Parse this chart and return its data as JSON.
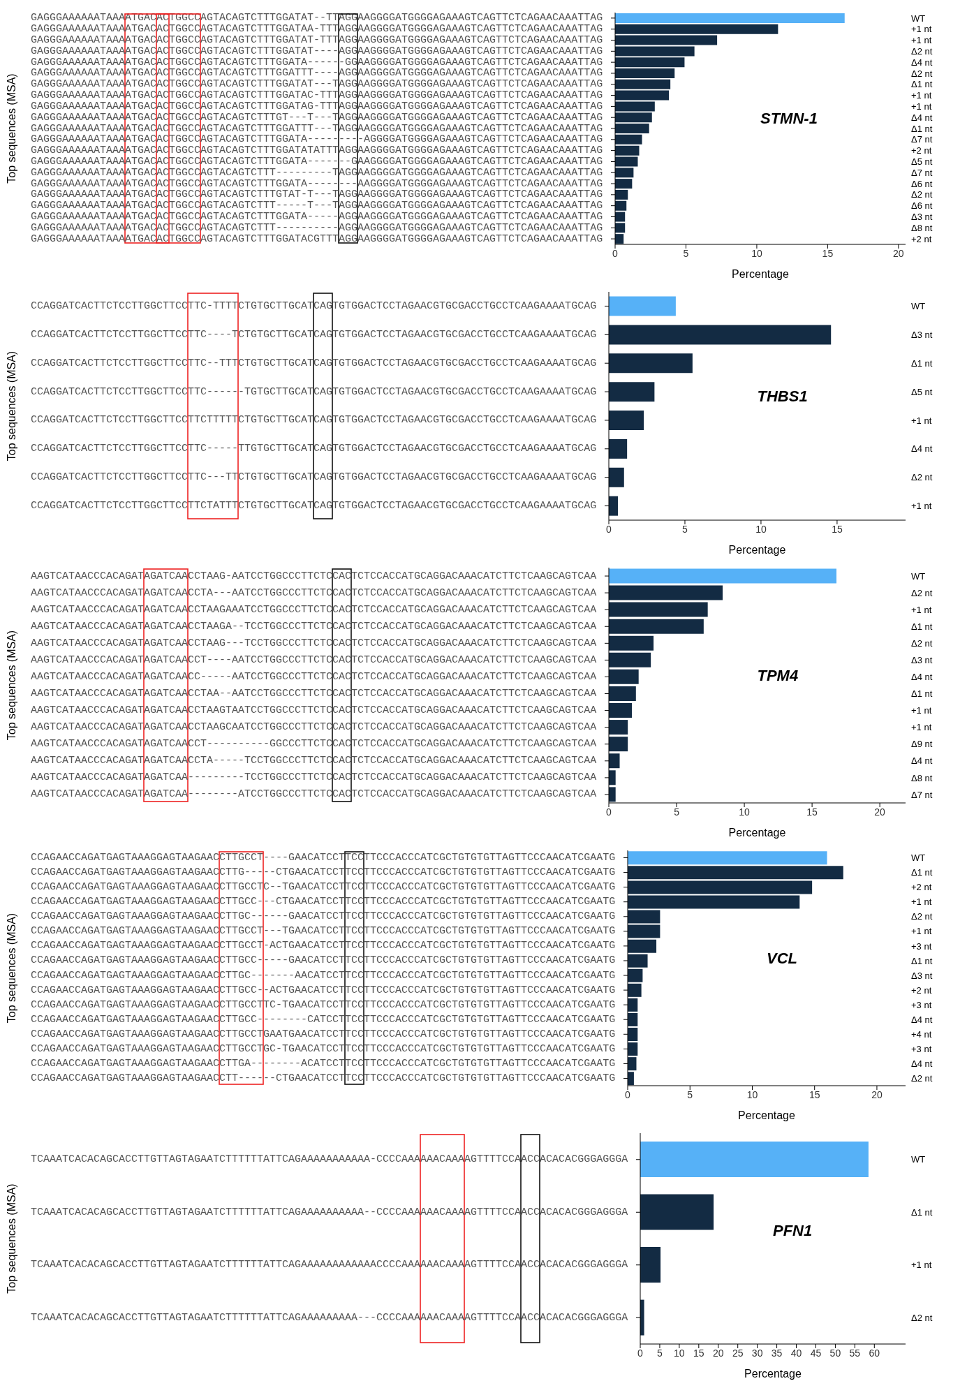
{
  "chart_data": [
    {
      "type": "bar",
      "orientation": "horizontal",
      "xlabel": "Percentage",
      "ylabel": "Top sequences (MSA)",
      "annotations": [
        "STMN-1"
      ],
      "categories": [
        "GAGGGAAAAAATAAAATGACACTGGCCAGTACAGTCTTTGGATAT--TTAGGAAGGGGATGGGGAGAAAGTCAGTTCTCAGAACAAATTAG",
        "GAGGGAAAAAATAAAATGACACTGGCCAGTACAGTCTTTGGATAA-TTTAGGAAGGGGATGGGGAGAAAGTCAGTTCTCAGAACAAATTAG",
        "GAGGGAAAAAATAAAATGACACTGGCCAGTACAGTCTTTGGATAT-TTTAGGAAGGGGATGGGGAGAAAGTCAGTTCTCAGAACAAATTAG",
        "GAGGGAAAAAATAAAATGACACTGGCCAGTACAGTCTTTGGATAT----AGGAAGGGGATGGGGAGAAAGTCAGTTCTCAGAACAAATTAG",
        "GAGGGAAAAAATAAAATGACACTGGCCAGTACAGTCTTTGGATA------GGAAGGGGATGGGGAGAAAGTCAGTTCTCAGAACAAATTAG",
        "GAGGGAAAAAATAAAATGACACTGGCCAGTACAGTCTTTGGATTT----AGGAAGGGGATGGGGAGAAAGTCAGTTCTCAGAACAAATTAG",
        "GAGGGAAAAAATAAAATGACACTGGCCAGTACAGTCTTTGGATAT---TAGGAAGGGGATGGGGAGAAAGTCAGTTCTCAGAACAAATTAG",
        "GAGGGAAAAAATAAAATGACACTGGCCAGTACAGTCTTTGGATAC-TTTAGGAAGGGGATGGGGAGAAAGTCAGTTCTCAGAACAAATTAG",
        "GAGGGAAAAAATAAAATGACACTGGCCAGTACAGTCTTTGGATAG-TTTAGGAAGGGGATGGGGAGAAAGTCAGTTCTCAGAACAAATTAG",
        "GAGGGAAAAAATAAAATGACACTGGCCAGTACAGTCTTTGT---T---TAGGAAGGGGATGGGGAGAAAGTCAGTTCTCAGAACAAATTAG",
        "GAGGGAAAAAATAAAATGACACTGGCCAGTACAGTCTTTGGATTT---TAGGAAGGGGATGGGGAGAAAGTCAGTTCTCAGAACAAATTAG",
        "GAGGGAAAAAATAAAATGACACTGGCCAGTACAGTCTTTGGATA---------AGGGGATGGGGAGAAAGTCAGTTCTCAGAACAAATTAG",
        "GAGGGAAAAAATAAAATGACACTGGCCAGTACAGTCTTTGGATATATTTAGGAAGGGGATGGGGAGAAAGTCAGTTCTCAGAACAAATTAG",
        "GAGGGAAAAAATAAAATGACACTGGCCAGTACAGTCTTTGGATA-------GAAGGGGATGGGGAGAAAGTCAGTTCTCAGAACAAATTAG",
        "GAGGGAAAAAATAAAATGACACTGGCCAGTACAGTCTTT---------TAGGAAGGGGATGGGGAGAAAGTCAGTTCTCAGAACAAATTAG",
        "GAGGGAAAAAATAAAATGACACTGGCCAGTACAGTCTTTGGATA--------AAGGGGATGGGGAGAAAGTCAGTTCTCAGAACAAATTAG",
        "GAGGGAAAAAATAAAATGACACTGGCCAGTACAGTCTTTGTAT-T---TAGGAAGGGGATGGGGAGAAAGTCAGTTCTCAGAACAAATTAG",
        "GAGGGAAAAAATAAAATGACACTGGCCAGTACAGTCTTT-----T---TAGGAAGGGGATGGGGAGAAAGTCAGTTCTCAGAACAAATTAG",
        "GAGGGAAAAAATAAAATGACACTGGCCAGTACAGTCTTTGGATA-----AGGAAGGGGATGGGGAGAAAGTCAGTTCTCAGAACAAATTAG",
        "GAGGGAAAAAATAAAATGACACTGGCCAGTACAGTCTTT----------AGGAAGGGGATGGGGAGAAAGTCAGTTCTCAGAACAAATTAG",
        "GAGGGAAAAAATAAAATGACACTGGCCAGTACAGTCTTTGGATACGTTTAGGAAGGGGATGGGGAGAAAGTCAGTTCTCAGAACAAATTAG"
      ],
      "y2_categories": [
        "WT",
        "+1 nt",
        "+1 nt",
        "Δ2 nt",
        "Δ4 nt",
        "Δ2 nt",
        "Δ1 nt",
        "+1 nt",
        "+1 nt",
        "Δ4 nt",
        "Δ1 nt",
        "Δ7 nt",
        "+2 nt",
        "Δ5 nt",
        "Δ7 nt",
        "Δ6 nt",
        "Δ2 nt",
        "Δ6 nt",
        "Δ3 nt",
        "Δ8 nt",
        "+2 nt"
      ],
      "values": [
        16.2,
        11.5,
        7.2,
        5.6,
        4.9,
        4.2,
        3.9,
        3.8,
        2.8,
        2.6,
        2.4,
        1.9,
        1.7,
        1.6,
        1.3,
        1.2,
        0.9,
        0.8,
        0.7,
        0.7,
        0.6
      ],
      "colors": [
        "#56b1f7",
        "#132b43",
        "#132b43",
        "#132b43",
        "#132b43",
        "#132b43",
        "#132b43",
        "#132b43",
        "#132b43",
        "#132b43",
        "#132b43",
        "#132b43",
        "#132b43",
        "#132b43",
        "#132b43",
        "#132b43",
        "#132b43",
        "#132b43",
        "#132b43",
        "#132b43",
        "#132b43"
      ],
      "xlim": [
        0,
        20.5
      ],
      "xticks": [
        0,
        5,
        10,
        15,
        20
      ]
    },
    {
      "type": "bar",
      "orientation": "horizontal",
      "xlabel": "Percentage",
      "ylabel": "Top sequences (MSA)",
      "annotations": [
        "THBS1"
      ],
      "categories": [
        "CCAGGATCACTTCTCCTTGGCTTCCTTC-TTTTCTGTGCTTGCATCAGTGTGGACTCCTAGAACGTGCGACCTGCCTCAAGAAAATGCAG",
        "CCAGGATCACTTCTCCTTGGCTTCCTTC----TCTGTGCTTGCATCAGTGTGGACTCCTAGAACGTGCGACCTGCCTCAAGAAAATGCAG",
        "CCAGGATCACTTCTCCTTGGCTTCCTTC--TTTCTGTGCTTGCATCAGTGTGGACTCCTAGAACGTGCGACCTGCCTCAAGAAAATGCAG",
        "CCAGGATCACTTCTCCTTGGCTTCCTTC------TGTGCTTGCATCAGTGTGGACTCCTAGAACGTGCGACCTGCCTCAAGAAAATGCAG",
        "CCAGGATCACTTCTCCTTGGCTTCCTTCTTTTTCTGTGCTTGCATCAGTGTGGACTCCTAGAACGTGCGACCTGCCTCAAGAAAATGCAG",
        "CCAGGATCACTTCTCCTTGGCTTCCTTC-----TTGTGCTTGCATCAGTGTGGACTCCTAGAACGTGCGACCTGCCTCAAGAAAATGCAG",
        "CCAGGATCACTTCTCCTTGGCTTCCTTC---TTCTGTGCTTGCATCAGTGTGGACTCCTAGAACGTGCGACCTGCCTCAAGAAAATGCAG",
        "CCAGGATCACTTCTCCTTGGCTTCCTTCTATTTCTGTGCTTGCATCAGTGTGGACTCCTAGAACGTGCGACCTGCCTCAAGAAAATGCAG"
      ],
      "y2_categories": [
        "WT",
        "Δ3 nt",
        "Δ1 nt",
        "Δ5 nt",
        "+1 nt",
        "Δ4 nt",
        "Δ2 nt",
        "+1 nt"
      ],
      "values": [
        4.4,
        14.6,
        5.5,
        3.0,
        2.3,
        1.2,
        1.0,
        0.6
      ],
      "colors": [
        "#56b1f7",
        "#132b43",
        "#132b43",
        "#132b43",
        "#132b43",
        "#132b43",
        "#132b43",
        "#132b43"
      ],
      "xlim": [
        0,
        19.5
      ],
      "xticks": [
        0,
        5,
        10,
        15
      ]
    },
    {
      "type": "bar",
      "orientation": "horizontal",
      "xlabel": "Percentage",
      "ylabel": "Top sequences (MSA)",
      "annotations": [
        "TPM4"
      ],
      "categories": [
        "AAGTCATAACCCACAGATAGATCAACCTAAG-AATCCTGGCCCTTCTCCACTCTCCACCATGCAGGACAAACATCTTCTCAAGCAGTCAA",
        "AAGTCATAACCCACAGATAGATCAACCTA---AATCCTGGCCCTTCTCCACTCTCCACCATGCAGGACAAACATCTTCTCAAGCAGTCAA",
        "AAGTCATAACCCACAGATAGATCAACCTAAGAAATCCTGGCCCTTCTCCACTCTCCACCATGCAGGACAAACATCTTCTCAAGCAGTCAA",
        "AAGTCATAACCCACAGATAGATCAACCTAAGA--TCCTGGCCCTTCTCCACTCTCCACCATGCAGGACAAACATCTTCTCAAGCAGTCAA",
        "AAGTCATAACCCACAGATAGATCAACCTAAG---TCCTGGCCCTTCTCCACTCTCCACCATGCAGGACAAACATCTTCTCAAGCAGTCAA",
        "AAGTCATAACCCACAGATAGATCAACCT----AATCCTGGCCCTTCTCCACTCTCCACCATGCAGGACAAACATCTTCTCAAGCAGTCAA",
        "AAGTCATAACCCACAGATAGATCAACC-----AATCCTGGCCCTTCTCCACTCTCCACCATGCAGGACAAACATCTTCTCAAGCAGTCAA",
        "AAGTCATAACCCACAGATAGATCAACCTAA--AATCCTGGCCCTTCTCCACTCTCCACCATGCAGGACAAACATCTTCTCAAGCAGTCAA",
        "AAGTCATAACCCACAGATAGATCAACCTAAGTAATCCTGGCCCTTCTCCACTCTCCACCATGCAGGACAAACATCTTCTCAAGCAGTCAA",
        "AAGTCATAACCCACAGATAGATCAACCTAAGCAATCCTGGCCCTTCTCCACTCTCCACCATGCAGGACAAACATCTTCTCAAGCAGTCAA",
        "AAGTCATAACCCACAGATAGATCAACCT----------GGCCCTTCTCCACTCTCCACCATGCAGGACAAACATCTTCTCAAGCAGTCAA",
        "AAGTCATAACCCACAGATAGATCAACCTA-----TCCTGGCCCTTCTCCACTCTCCACCATGCAGGACAAACATCTTCTCAAGCAGTCAA",
        "AAGTCATAACCCACAGATAGATCAA---------TCCTGGCCCTTCTCCACTCTCCACCATGCAGGACAAACATCTTCTCAAGCAGTCAA",
        "AAGTCATAACCCACAGATAGATCAA--------ATCCTGGCCCTTCTCCACTCTCCACCATGCAGGACAAACATCTTCTCAAGCAGTCAA"
      ],
      "y2_categories": [
        "WT",
        "Δ2 nt",
        "+1 nt",
        "Δ1 nt",
        "Δ2 nt",
        "Δ3 nt",
        "Δ4 nt",
        "Δ1 nt",
        "+1 nt",
        "+1 nt",
        "Δ9 nt",
        "Δ4 nt",
        "Δ8 nt",
        "Δ7 nt"
      ],
      "values": [
        16.8,
        8.4,
        7.3,
        7.0,
        3.3,
        3.1,
        2.2,
        2.0,
        1.7,
        1.4,
        1.4,
        0.8,
        0.5,
        0.5
      ],
      "colors": [
        "#56b1f7",
        "#132b43",
        "#132b43",
        "#132b43",
        "#132b43",
        "#132b43",
        "#132b43",
        "#132b43",
        "#132b43",
        "#132b43",
        "#132b43",
        "#132b43",
        "#132b43",
        "#132b43"
      ],
      "xlim": [
        0,
        21.9
      ],
      "xticks": [
        0,
        5,
        10,
        15,
        20
      ]
    },
    {
      "type": "bar",
      "orientation": "horizontal",
      "xlabel": "Percentage",
      "ylabel": "Top sequences (MSA)",
      "annotations": [
        "VCL"
      ],
      "categories": [
        "CCAGAACCAGATGAGTAAAGGAGTAAGAACCTTGCCT----GAACATCCTTCCTTCCCACCCATCGCTGTGTGTTAGTTCCCAACATCGAATG",
        "CCAGAACCAGATGAGTAAAGGAGTAAGAACCTTG-----CTGAACATCCTTCCTTCCCACCCATCGCTGTGTGTTAGTTCCCAACATCGAATG",
        "CCAGAACCAGATGAGTAAAGGAGTAAGAACCTTGCCTC--TGAACATCCTTCCTTCCCACCCATCGCTGTGTGTTAGTTCCCAACATCGAATG",
        "CCAGAACCAGATGAGTAAAGGAGTAAGAACCTTGCC---CTGAACATCCTTCCTTCCCACCCATCGCTGTGTGTTAGTTCCCAACATCGAATG",
        "CCAGAACCAGATGAGTAAAGGAGTAAGAACCTTGC------GAACATCCTTCCTTCCCACCCATCGCTGTGTGTTAGTTCCCAACATCGAATG",
        "CCAGAACCAGATGAGTAAAGGAGTAAGAACCTTGCCT---TGAACATCCTTCCTTCCCACCCATCGCTGTGTGTTAGTTCCCAACATCGAATG",
        "CCAGAACCAGATGAGTAAAGGAGTAAGAACCTTGCCT-ACTGAACATCCTTCCTTCCCACCCATCGCTGTGTGTTAGTTCCCAACATCGAATG",
        "CCAGAACCAGATGAGTAAAGGAGTAAGAACCTTGCC-----GAACATCCTTCCTTCCCACCCATCGCTGTGTGTTAGTTCCCAACATCGAATG",
        "CCAGAACCAGATGAGTAAAGGAGTAAGAACCTTGC-------AACATCCTTCCTTCCCACCCATCGCTGTGTGTTAGTTCCCAACATCGAATG",
        "CCAGAACCAGATGAGTAAAGGAGTAAGAACCTTGCC--ACTGAACATCCTTCCTTCCCACCCATCGCTGTGTGTTAGTTCCCAACATCGAATG",
        "CCAGAACCAGATGAGTAAAGGAGTAAGAACCTTGCCTTC-TGAACATCCTTCCTTCCCACCCATCGCTGTGTGTTAGTTCCCAACATCGAATG",
        "CCAGAACCAGATGAGTAAAGGAGTAAGAACCTTGCC--------CATCCTTCCTTCCCACCCATCGCTGTGTGTTAGTTCCCAACATCGAATG",
        "CCAGAACCAGATGAGTAAAGGAGTAAGAACCTTGCCTGAATGAACATCCTTCCTTCCCACCCATCGCTGTGTGTTAGTTCCCAACATCGAATG",
        "CCAGAACCAGATGAGTAAAGGAGTAAGAACCTTGCCTGC-TGAACATCCTTCCTTCCCACCCATCGCTGTGTGTTAGTTCCCAACATCGAATG",
        "CCAGAACCAGATGAGTAAAGGAGTAAGAACCTTGA--------ACATCCTTCCTTCCCACCCATCGCTGTGTGTTAGTTCCCAACATCGAATG",
        "CCAGAACCAGATGAGTAAAGGAGTAAGAACCTT------CTGAACATCCTTCCTTCCCACCCATCGCTGTGTGTTAGTTCCCAACATCGAATG"
      ],
      "y2_categories": [
        "WT",
        "Δ1 nt",
        "+2 nt",
        "+1 nt",
        "Δ2 nt",
        "+1 nt",
        "+3 nt",
        "Δ1 nt",
        "Δ3 nt",
        "+2 nt",
        "+3 nt",
        "Δ4 nt",
        "+4 nt",
        "+3 nt",
        "Δ4 nt",
        "Δ2 nt"
      ],
      "values": [
        16.0,
        17.3,
        14.8,
        13.8,
        2.6,
        2.6,
        2.3,
        1.6,
        1.2,
        1.1,
        0.8,
        0.8,
        0.8,
        0.8,
        0.7,
        0.5
      ],
      "colors": [
        "#56b1f7",
        "#132b43",
        "#132b43",
        "#132b43",
        "#132b43",
        "#132b43",
        "#132b43",
        "#132b43",
        "#132b43",
        "#132b43",
        "#132b43",
        "#132b43",
        "#132b43",
        "#132b43",
        "#132b43",
        "#132b43"
      ],
      "xlim": [
        0,
        22.3
      ],
      "xticks": [
        0,
        5,
        10,
        15,
        20
      ]
    },
    {
      "type": "bar",
      "orientation": "horizontal",
      "xlabel": "Percentage",
      "ylabel": "Top sequences (MSA)",
      "annotations": [
        "PFN1"
      ],
      "categories": [
        "TCAAATCACACAGCACCTTGTTAGTAGAATCTTTTTTATTCAGAAAAAAAAAAA-CCCCAAAAAACAAAAGTTTTCCAACCACACACGGGAGGGA",
        "TCAAATCACACAGCACCTTGTTAGTAGAATCTTTTTTATTCAGAAAAAAAAAA--CCCCAAAAAACAAAAGTTTTCCAACCACACACGGGAGGGA",
        "TCAAATCACACAGCACCTTGTTAGTAGAATCTTTTTTATTCAGAAAAAAAAAAAACCCCAAAAAACAAAAGTTTTCCAACCACACACGGGAGGGA",
        "TCAAATCACACAGCACCTTGTTAGTAGAATCTTTTTTATTCAGAAAAAAAAA---CCCCAAAAAACAAAAGTTTTCCAACCACACACGGGAGGGA"
      ],
      "y2_categories": [
        "WT",
        "Δ1 nt",
        "+1 nt",
        "Δ2 nt"
      ],
      "values": [
        58.5,
        18.8,
        5.2,
        1.0
      ],
      "colors": [
        "#56b1f7",
        "#132b43",
        "#132b43",
        "#132b43"
      ],
      "xlim": [
        0,
        68
      ],
      "xticks": [
        0,
        5,
        10,
        15,
        20,
        25,
        30,
        35,
        40,
        45,
        50,
        55,
        60
      ]
    }
  ]
}
